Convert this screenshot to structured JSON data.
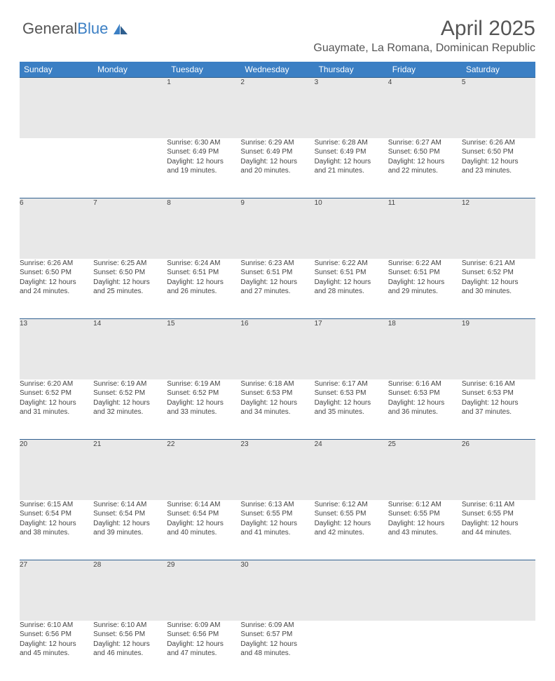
{
  "brand": {
    "part1": "General",
    "part2": "Blue"
  },
  "title": "April 2025",
  "location": "Guaymate, La Romana, Dominican Republic",
  "header_bg": "#3b7fc4",
  "daynum_bg": "#e8e8e8",
  "border_color": "#2f5f8f",
  "title_color": "#555555",
  "text_color": "#444444",
  "days_of_week": [
    "Sunday",
    "Monday",
    "Tuesday",
    "Wednesday",
    "Thursday",
    "Friday",
    "Saturday"
  ],
  "weeks": [
    {
      "nums": [
        "",
        "",
        "1",
        "2",
        "3",
        "4",
        "5"
      ],
      "cells": [
        null,
        null,
        {
          "sr": "Sunrise: 6:30 AM",
          "ss": "Sunset: 6:49 PM",
          "d1": "Daylight: 12 hours",
          "d2": "and 19 minutes."
        },
        {
          "sr": "Sunrise: 6:29 AM",
          "ss": "Sunset: 6:49 PM",
          "d1": "Daylight: 12 hours",
          "d2": "and 20 minutes."
        },
        {
          "sr": "Sunrise: 6:28 AM",
          "ss": "Sunset: 6:49 PM",
          "d1": "Daylight: 12 hours",
          "d2": "and 21 minutes."
        },
        {
          "sr": "Sunrise: 6:27 AM",
          "ss": "Sunset: 6:50 PM",
          "d1": "Daylight: 12 hours",
          "d2": "and 22 minutes."
        },
        {
          "sr": "Sunrise: 6:26 AM",
          "ss": "Sunset: 6:50 PM",
          "d1": "Daylight: 12 hours",
          "d2": "and 23 minutes."
        }
      ]
    },
    {
      "nums": [
        "6",
        "7",
        "8",
        "9",
        "10",
        "11",
        "12"
      ],
      "cells": [
        {
          "sr": "Sunrise: 6:26 AM",
          "ss": "Sunset: 6:50 PM",
          "d1": "Daylight: 12 hours",
          "d2": "and 24 minutes."
        },
        {
          "sr": "Sunrise: 6:25 AM",
          "ss": "Sunset: 6:50 PM",
          "d1": "Daylight: 12 hours",
          "d2": "and 25 minutes."
        },
        {
          "sr": "Sunrise: 6:24 AM",
          "ss": "Sunset: 6:51 PM",
          "d1": "Daylight: 12 hours",
          "d2": "and 26 minutes."
        },
        {
          "sr": "Sunrise: 6:23 AM",
          "ss": "Sunset: 6:51 PM",
          "d1": "Daylight: 12 hours",
          "d2": "and 27 minutes."
        },
        {
          "sr": "Sunrise: 6:22 AM",
          "ss": "Sunset: 6:51 PM",
          "d1": "Daylight: 12 hours",
          "d2": "and 28 minutes."
        },
        {
          "sr": "Sunrise: 6:22 AM",
          "ss": "Sunset: 6:51 PM",
          "d1": "Daylight: 12 hours",
          "d2": "and 29 minutes."
        },
        {
          "sr": "Sunrise: 6:21 AM",
          "ss": "Sunset: 6:52 PM",
          "d1": "Daylight: 12 hours",
          "d2": "and 30 minutes."
        }
      ]
    },
    {
      "nums": [
        "13",
        "14",
        "15",
        "16",
        "17",
        "18",
        "19"
      ],
      "cells": [
        {
          "sr": "Sunrise: 6:20 AM",
          "ss": "Sunset: 6:52 PM",
          "d1": "Daylight: 12 hours",
          "d2": "and 31 minutes."
        },
        {
          "sr": "Sunrise: 6:19 AM",
          "ss": "Sunset: 6:52 PM",
          "d1": "Daylight: 12 hours",
          "d2": "and 32 minutes."
        },
        {
          "sr": "Sunrise: 6:19 AM",
          "ss": "Sunset: 6:52 PM",
          "d1": "Daylight: 12 hours",
          "d2": "and 33 minutes."
        },
        {
          "sr": "Sunrise: 6:18 AM",
          "ss": "Sunset: 6:53 PM",
          "d1": "Daylight: 12 hours",
          "d2": "and 34 minutes."
        },
        {
          "sr": "Sunrise: 6:17 AM",
          "ss": "Sunset: 6:53 PM",
          "d1": "Daylight: 12 hours",
          "d2": "and 35 minutes."
        },
        {
          "sr": "Sunrise: 6:16 AM",
          "ss": "Sunset: 6:53 PM",
          "d1": "Daylight: 12 hours",
          "d2": "and 36 minutes."
        },
        {
          "sr": "Sunrise: 6:16 AM",
          "ss": "Sunset: 6:53 PM",
          "d1": "Daylight: 12 hours",
          "d2": "and 37 minutes."
        }
      ]
    },
    {
      "nums": [
        "20",
        "21",
        "22",
        "23",
        "24",
        "25",
        "26"
      ],
      "cells": [
        {
          "sr": "Sunrise: 6:15 AM",
          "ss": "Sunset: 6:54 PM",
          "d1": "Daylight: 12 hours",
          "d2": "and 38 minutes."
        },
        {
          "sr": "Sunrise: 6:14 AM",
          "ss": "Sunset: 6:54 PM",
          "d1": "Daylight: 12 hours",
          "d2": "and 39 minutes."
        },
        {
          "sr": "Sunrise: 6:14 AM",
          "ss": "Sunset: 6:54 PM",
          "d1": "Daylight: 12 hours",
          "d2": "and 40 minutes."
        },
        {
          "sr": "Sunrise: 6:13 AM",
          "ss": "Sunset: 6:55 PM",
          "d1": "Daylight: 12 hours",
          "d2": "and 41 minutes."
        },
        {
          "sr": "Sunrise: 6:12 AM",
          "ss": "Sunset: 6:55 PM",
          "d1": "Daylight: 12 hours",
          "d2": "and 42 minutes."
        },
        {
          "sr": "Sunrise: 6:12 AM",
          "ss": "Sunset: 6:55 PM",
          "d1": "Daylight: 12 hours",
          "d2": "and 43 minutes."
        },
        {
          "sr": "Sunrise: 6:11 AM",
          "ss": "Sunset: 6:55 PM",
          "d1": "Daylight: 12 hours",
          "d2": "and 44 minutes."
        }
      ]
    },
    {
      "nums": [
        "27",
        "28",
        "29",
        "30",
        "",
        "",
        ""
      ],
      "cells": [
        {
          "sr": "Sunrise: 6:10 AM",
          "ss": "Sunset: 6:56 PM",
          "d1": "Daylight: 12 hours",
          "d2": "and 45 minutes."
        },
        {
          "sr": "Sunrise: 6:10 AM",
          "ss": "Sunset: 6:56 PM",
          "d1": "Daylight: 12 hours",
          "d2": "and 46 minutes."
        },
        {
          "sr": "Sunrise: 6:09 AM",
          "ss": "Sunset: 6:56 PM",
          "d1": "Daylight: 12 hours",
          "d2": "and 47 minutes."
        },
        {
          "sr": "Sunrise: 6:09 AM",
          "ss": "Sunset: 6:57 PM",
          "d1": "Daylight: 12 hours",
          "d2": "and 48 minutes."
        },
        null,
        null,
        null
      ]
    }
  ]
}
